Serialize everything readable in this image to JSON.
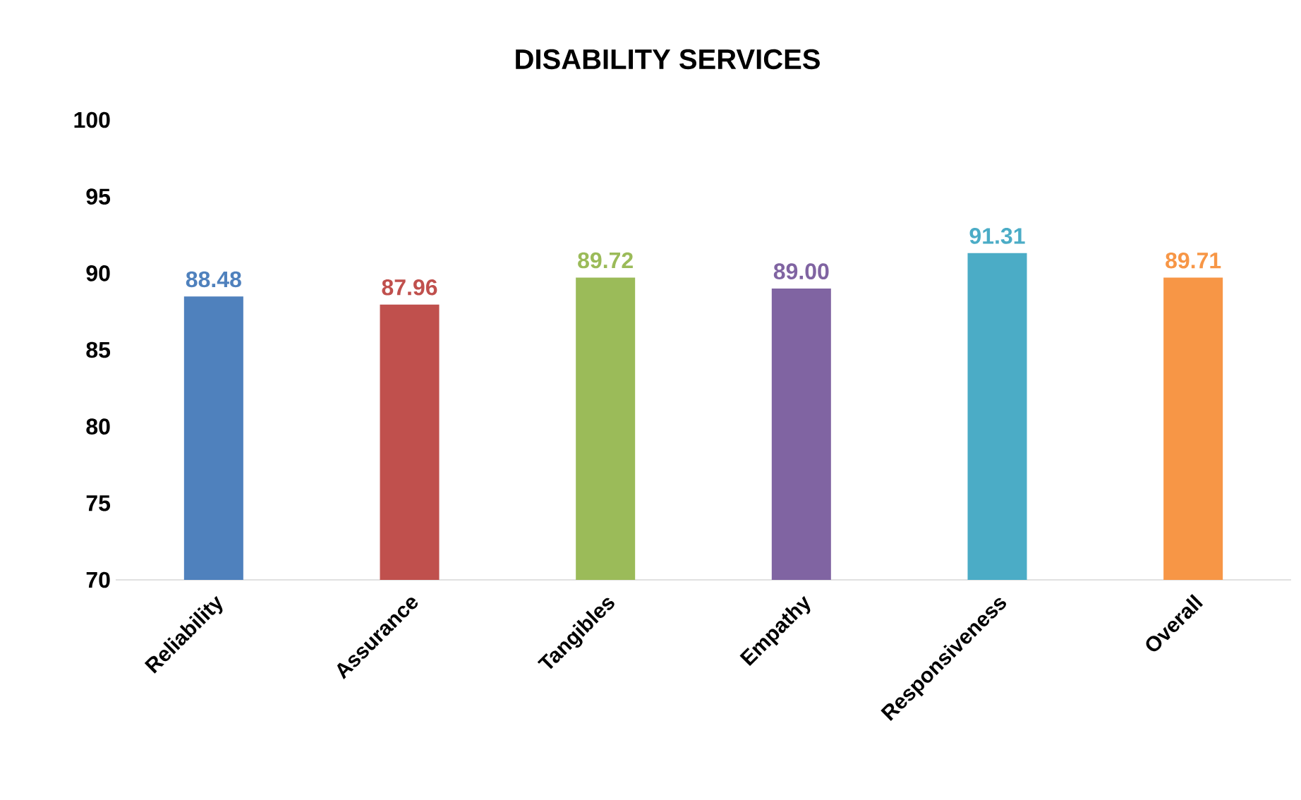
{
  "chart_data": {
    "type": "bar",
    "title": "DISABILITY SERVICES",
    "categories": [
      "Reliability",
      "Assurance",
      "Tangibles",
      "Empathy",
      "Responsiveness",
      "Overall"
    ],
    "values": [
      88.48,
      87.96,
      89.72,
      89.0,
      91.31,
      89.71
    ],
    "value_labels": [
      "88.48",
      "87.96",
      "89.72",
      "89.00",
      "91.31",
      "89.71"
    ],
    "colors": [
      "#4f81bd",
      "#c0504d",
      "#9bbb59",
      "#8064a2",
      "#4bacc6",
      "#f79646"
    ],
    "ylim": [
      70,
      100
    ],
    "yticks": [
      70,
      75,
      80,
      85,
      90,
      95,
      100
    ]
  }
}
